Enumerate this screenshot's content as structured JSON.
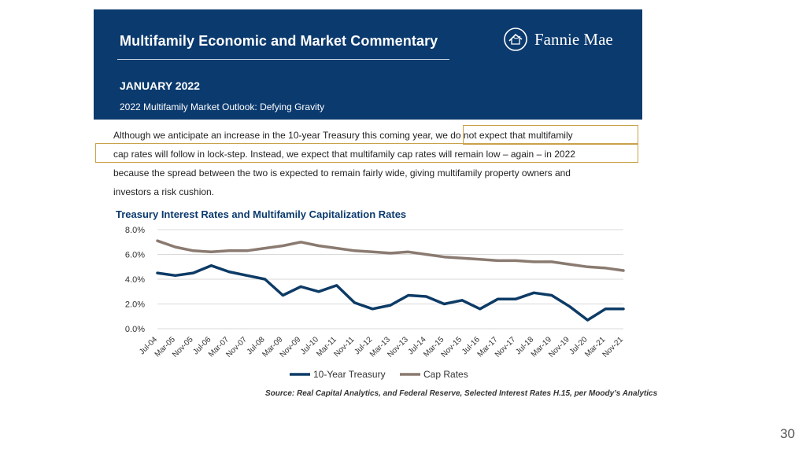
{
  "header": {
    "title": "Multifamily Economic and Market Commentary",
    "brand": "Fannie Mae",
    "date": "JANUARY 2022",
    "subtitle": "2022 Multifamily Market Outlook: Defying Gravity"
  },
  "paragraph": {
    "lines": [
      "Although we anticipate an increase in the 10-year Treasury this coming year, we do not expect that multifamily",
      "cap rates will follow in lock-step. Instead, we expect that multifamily cap rates will remain low – again – in 2022",
      "because the spread between the two is expected to remain fairly wide, giving multifamily property owners and",
      "investors a risk cushion."
    ]
  },
  "colors": {
    "banner": "#0b3a6e",
    "treasury": "#0d3b66",
    "cap_rates": "#8a7a70",
    "highlight": "#c9a24a"
  },
  "chart_data": {
    "type": "line",
    "title": "Treasury Interest Rates and Multifamily Capitalization Rates",
    "ylim": [
      0,
      8
    ],
    "yticks": [
      "0.0%",
      "2.0%",
      "4.0%",
      "6.0%",
      "8.0%"
    ],
    "xticks": [
      "Jul-04",
      "Mar-05",
      "Nov-05",
      "Jul-06",
      "Mar-07",
      "Nov-07",
      "Jul-08",
      "Mar-09",
      "Nov-09",
      "Jul-10",
      "Mar-11",
      "Nov-11",
      "Jul-12",
      "Mar-13",
      "Nov-13",
      "Jul-14",
      "Mar-15",
      "Nov-15",
      "Jul-16",
      "Mar-17",
      "Nov-17",
      "Jul-18",
      "Mar-19",
      "Nov-19",
      "Jul-20",
      "Mar-21",
      "Nov-21"
    ],
    "grid": true,
    "legend": "bottom",
    "series": [
      {
        "name": "10-Year Treasury",
        "x": [
          "Jul-04",
          "Mar-05",
          "Nov-05",
          "Jul-06",
          "Mar-07",
          "Nov-07",
          "Jul-08",
          "Mar-09",
          "Nov-09",
          "Jul-10",
          "Mar-11",
          "Nov-11",
          "Jul-12",
          "Mar-13",
          "Nov-13",
          "Jul-14",
          "Mar-15",
          "Nov-15",
          "Jul-16",
          "Mar-17",
          "Nov-17",
          "Jul-18",
          "Mar-19",
          "Nov-19",
          "Jul-20",
          "Mar-21",
          "Nov-21"
        ],
        "values": [
          4.5,
          4.3,
          4.5,
          5.1,
          4.6,
          4.3,
          4.0,
          2.7,
          3.4,
          3.0,
          3.5,
          2.1,
          1.6,
          1.9,
          2.7,
          2.6,
          2.0,
          2.3,
          1.6,
          2.4,
          2.4,
          2.9,
          2.7,
          1.8,
          0.7,
          1.6,
          1.6
        ]
      },
      {
        "name": "Cap Rates",
        "x": [
          "Jul-04",
          "Mar-05",
          "Nov-05",
          "Jul-06",
          "Mar-07",
          "Nov-07",
          "Jul-08",
          "Mar-09",
          "Nov-09",
          "Jul-10",
          "Mar-11",
          "Nov-11",
          "Jul-12",
          "Mar-13",
          "Nov-13",
          "Jul-14",
          "Mar-15",
          "Nov-15",
          "Jul-16",
          "Mar-17",
          "Nov-17",
          "Jul-18",
          "Mar-19",
          "Nov-19",
          "Jul-20",
          "Mar-21",
          "Nov-21"
        ],
        "values": [
          7.1,
          6.6,
          6.3,
          6.2,
          6.3,
          6.3,
          6.5,
          6.7,
          7.0,
          6.7,
          6.5,
          6.3,
          6.2,
          6.1,
          6.2,
          6.0,
          5.8,
          5.7,
          5.6,
          5.5,
          5.5,
          5.4,
          5.4,
          5.2,
          5.0,
          4.9,
          4.7
        ]
      }
    ]
  },
  "source": "Source: Real Capital Analytics, and Federal Reserve, Selected Interest Rates H.15, per Moody’s Analytics",
  "page_number": "30"
}
